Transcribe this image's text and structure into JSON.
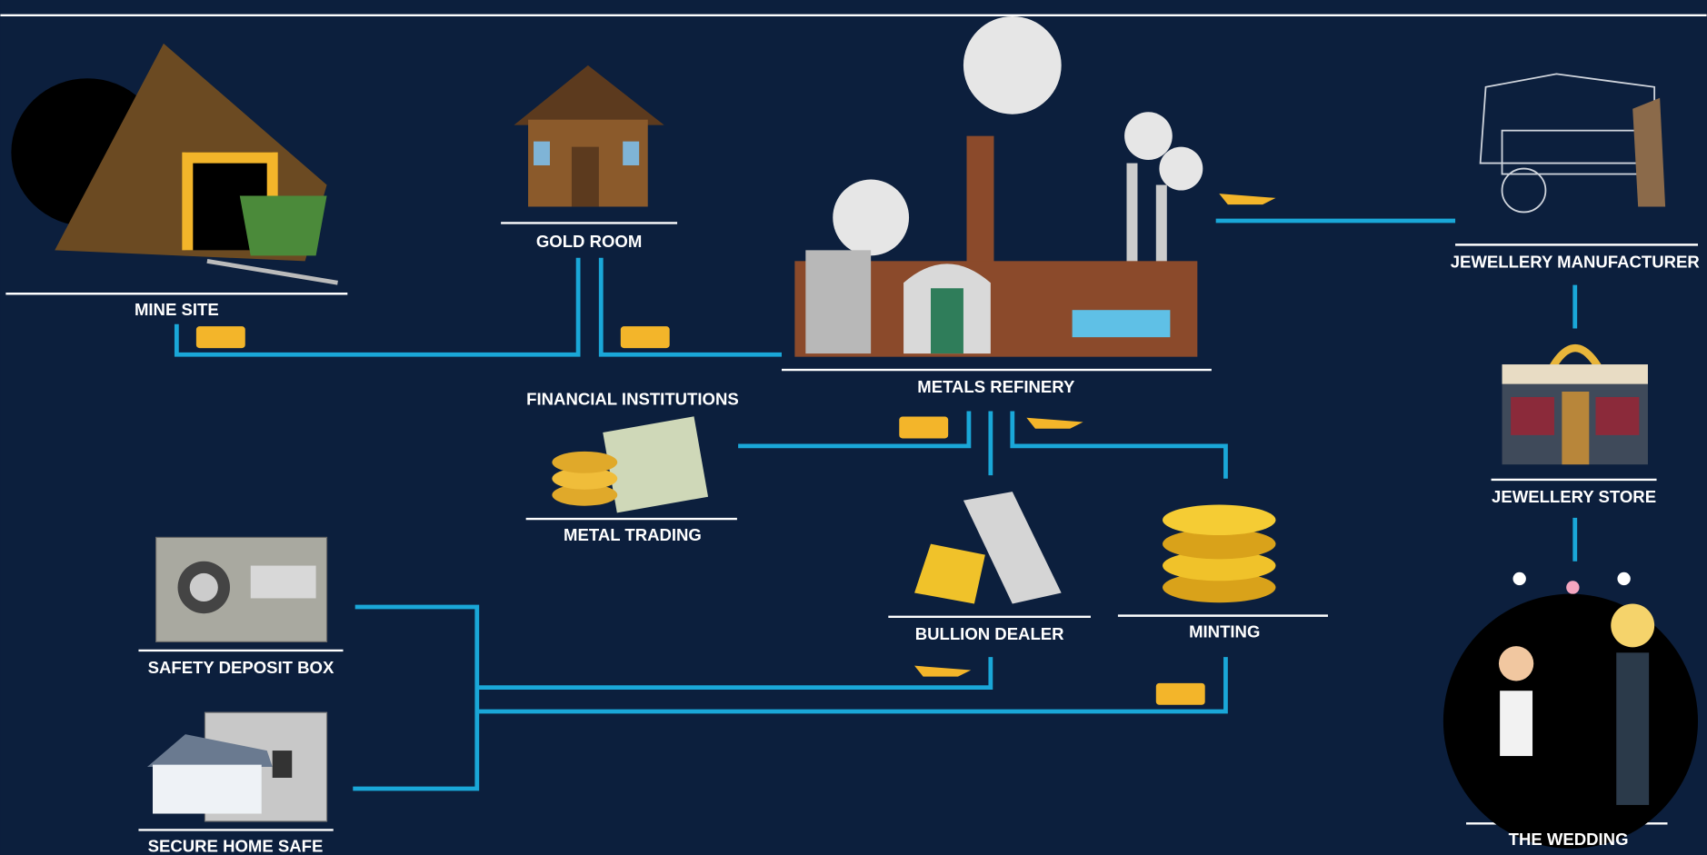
{
  "nodes": [
    {
      "label": "MINE SITE"
    },
    {
      "label": "GOLD ROOM"
    },
    {
      "label": "METALS REFINERY"
    },
    {
      "label": "FINANCIAL INSTITUTIONS"
    },
    {
      "label": "METAL TRADING"
    },
    {
      "label": "JEWELLERY MANUFACTURER"
    },
    {
      "label": "JEWELLERY STORE"
    },
    {
      "label": "BULLION DEALER"
    },
    {
      "label": "MINTING"
    },
    {
      "label": "SAFETY DEPOSIT BOX"
    },
    {
      "label": "SECURE HOME SAFE"
    },
    {
      "label": "THE WEDDING"
    }
  ]
}
